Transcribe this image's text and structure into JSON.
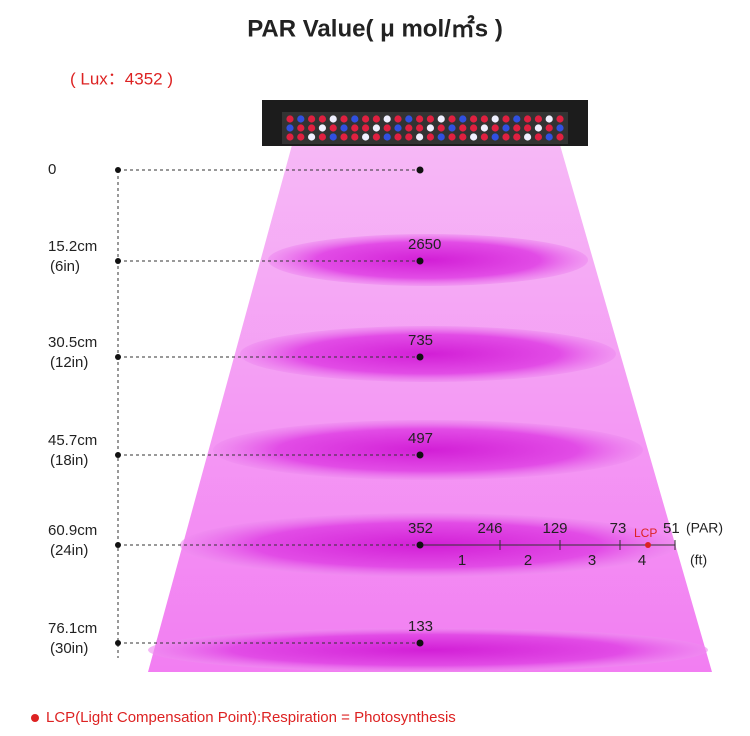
{
  "title": "PAR Value( μ mol/㎡s )",
  "lux": "( Lux：4352 )",
  "levels": [
    {
      "height": "0"
    },
    {
      "height": "15.2cm",
      "inches": "(6in)",
      "par": "2650"
    },
    {
      "height": "30.5cm",
      "inches": "(12in)",
      "par": "735"
    },
    {
      "height": "45.7cm",
      "inches": "(18in)",
      "par": "497"
    },
    {
      "height": "60.9cm",
      "inches": "(24in)",
      "par": "352"
    },
    {
      "height": "76.1cm",
      "inches": "(30in)",
      "par": "133"
    }
  ],
  "spread": {
    "par": [
      "246",
      "129",
      "73",
      "51"
    ],
    "par_unit": "(PAR)",
    "feet": [
      "1",
      "2",
      "3",
      "4"
    ],
    "feet_unit": "(ft)",
    "lcp": "LCP"
  },
  "note": "LCP(Light Compensation Point):Respiration = Photosynthesis"
}
